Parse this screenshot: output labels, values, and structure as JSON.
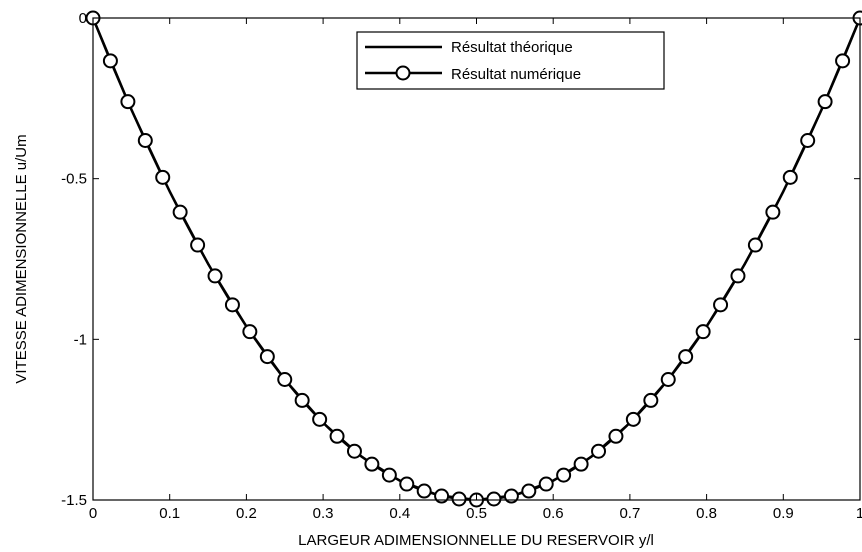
{
  "chart_data": {
    "type": "line",
    "xlabel": "LARGEUR ADIMENSIONNELLE DU RESERVOIR y/l",
    "ylabel": "VITESSE ADIMENSIONNELLE u/Um",
    "xlim": [
      0,
      1
    ],
    "ylim": [
      -1.5,
      0
    ],
    "xticks": [
      0,
      0.1,
      0.2,
      0.3,
      0.4,
      0.5,
      0.6,
      0.7,
      0.8,
      0.9,
      1
    ],
    "xtick_labels": [
      "0",
      "0.1",
      "0.2",
      "0.3",
      "0.4",
      "0.5",
      "0.6",
      "0.7",
      "0.8",
      "0.9",
      "1"
    ],
    "yticks": [
      0,
      -0.5,
      -1,
      -1.5
    ],
    "ytick_labels": [
      "0",
      "-0.5",
      "-1",
      "-1.5"
    ],
    "grid": false,
    "legend_position": "top-right",
    "series": [
      {
        "name": "Résultat théorique",
        "style": "solid line",
        "color": "#000000",
        "x": [
          0,
          0.05,
          0.1,
          0.15,
          0.2,
          0.25,
          0.3,
          0.35,
          0.4,
          0.45,
          0.5,
          0.55,
          0.6,
          0.65,
          0.7,
          0.75,
          0.8,
          0.85,
          0.9,
          0.95,
          1
        ],
        "y": [
          0,
          -0.285,
          -0.54,
          -0.765,
          -0.96,
          -1.125,
          -1.26,
          -1.365,
          -1.44,
          -1.485,
          -1.5,
          -1.485,
          -1.44,
          -1.365,
          -1.26,
          -1.125,
          -0.96,
          -0.765,
          -0.54,
          -0.285,
          0
        ]
      },
      {
        "name": "Résultat numérique",
        "style": "line with circle markers",
        "color": "#000000",
        "x": [
          0,
          0.0227,
          0.0455,
          0.0682,
          0.0909,
          0.1136,
          0.1364,
          0.1591,
          0.1818,
          0.2045,
          0.2273,
          0.25,
          0.2727,
          0.2955,
          0.3182,
          0.3409,
          0.3636,
          0.3864,
          0.4091,
          0.4318,
          0.4545,
          0.4773,
          0.5,
          0.5227,
          0.5455,
          0.5682,
          0.5909,
          0.6136,
          0.6364,
          0.6591,
          0.6818,
          0.7045,
          0.7273,
          0.75,
          0.7727,
          0.7955,
          0.8182,
          0.8409,
          0.8636,
          0.8864,
          0.9091,
          0.9318,
          0.9545,
          0.9773,
          1
        ],
        "y": [
          0,
          -0.1333,
          -0.2603,
          -0.3812,
          -0.4959,
          -0.6043,
          -0.7066,
          -0.8027,
          -0.8926,
          -0.9762,
          -1.0537,
          -1.125,
          -1.1901,
          -1.249,
          -1.3017,
          -1.3482,
          -1.3884,
          -1.4225,
          -1.4504,
          -1.4721,
          -1.4876,
          -1.4969,
          -1.5,
          -1.4969,
          -1.4876,
          -1.4721,
          -1.4504,
          -1.4225,
          -1.3884,
          -1.3482,
          -1.3017,
          -1.249,
          -1.1901,
          -1.125,
          -1.0537,
          -0.9762,
          -0.8926,
          -0.8027,
          -0.7066,
          -0.6043,
          -0.4959,
          -0.3812,
          -0.2603,
          -0.1333,
          0
        ]
      }
    ]
  }
}
